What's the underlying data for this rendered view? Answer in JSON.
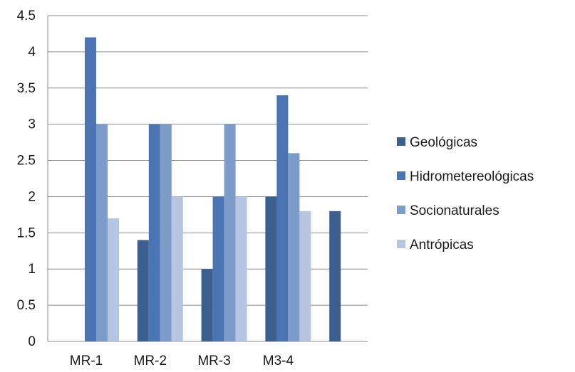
{
  "chart_data": {
    "type": "bar",
    "categories": [
      "MR-1",
      "MR-2",
      "MR-3",
      "M3-4",
      ""
    ],
    "series": [
      {
        "name": "Geológicas",
        "color": "#3b5f8f",
        "values": [
          null,
          1.4,
          1.0,
          2.0,
          1.8
        ]
      },
      {
        "name": "Hidrometereológicas",
        "color": "#4a74b4",
        "values": [
          4.2,
          3.0,
          2.0,
          3.4,
          null
        ]
      },
      {
        "name": "Socionaturales",
        "color": "#7e9cc9",
        "values": [
          3.0,
          3.0,
          3.0,
          2.6,
          null
        ]
      },
      {
        "name": "Antrópicas",
        "color": "#b6c5e2",
        "values": [
          1.7,
          2.0,
          2.0,
          1.8,
          null
        ]
      }
    ],
    "yticks": [
      "0",
      "0.5",
      "1",
      "1.5",
      "2",
      "2.5",
      "3",
      "3.5",
      "4",
      "4.5"
    ],
    "ylim": [
      0,
      4.5
    ],
    "grid": true,
    "legend_position": "right"
  }
}
